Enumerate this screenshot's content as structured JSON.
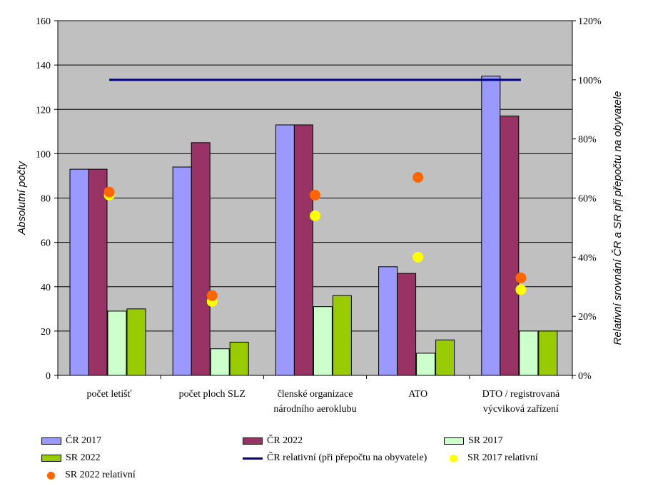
{
  "chart_data": {
    "type": "bar",
    "categories": [
      [
        "počet letišť"
      ],
      [
        "počet ploch SLZ"
      ],
      [
        "členské organizace",
        "národního aeroklubu"
      ],
      [
        "ATO"
      ],
      [
        "DTO / registrovaná",
        "výcviková zařízení"
      ]
    ],
    "series": [
      {
        "name": "ČR 2017",
        "values": [
          93,
          94,
          113,
          49,
          135
        ],
        "color": "#9999ff"
      },
      {
        "name": "ČR 2022",
        "values": [
          93,
          105,
          113,
          46,
          117
        ],
        "color": "#993366"
      },
      {
        "name": "SR 2017",
        "values": [
          29,
          12,
          31,
          10,
          20
        ],
        "color": "#ccffcc"
      },
      {
        "name": "SR 2022",
        "values": [
          30,
          15,
          36,
          16,
          20
        ],
        "color": "#99cc00"
      }
    ],
    "relative_line": {
      "name": "ČR relativní (při přepočtu na obyvatele)",
      "value": 100,
      "color": "#000080"
    },
    "relative_points": [
      {
        "name": "SR 2017 relativní",
        "values": [
          61,
          25,
          54,
          40,
          29
        ],
        "color": "#ffff00"
      },
      {
        "name": "SR 2022 relativní",
        "values": [
          62,
          27,
          61,
          67,
          33
        ],
        "color": "#ff6600"
      }
    ],
    "ylabel": "Absolutní počty",
    "y2label": "Relativní srovnání ČR a SR při přepočtu na obyvatele",
    "ylim": [
      0,
      160
    ],
    "yticks": [
      "0",
      "20",
      "40",
      "60",
      "80",
      "100",
      "120",
      "140",
      "160"
    ],
    "y2lim": [
      0,
      120
    ],
    "y2ticks": [
      "0%",
      "20%",
      "40%",
      "60%",
      "80%",
      "100%",
      "120%"
    ],
    "plot_bg": "#c0c0c0",
    "legend_placement": "bottom"
  },
  "legend": [
    {
      "label": "ČR 2017",
      "kind": "bar",
      "color": "#9999ff"
    },
    {
      "label": "ČR 2022",
      "kind": "bar",
      "color": "#993366"
    },
    {
      "label": "SR 2017",
      "kind": "bar",
      "color": "#ccffcc"
    },
    {
      "label": "SR 2022",
      "kind": "bar",
      "color": "#99cc00"
    },
    {
      "label": "ČR relativní (při přepočtu na obyvatele)",
      "kind": "line",
      "color": "#000080"
    },
    {
      "label": "SR 2017 relativní",
      "kind": "dot",
      "color": "#ffff00"
    },
    {
      "label": "SR 2022 relativní",
      "kind": "dot",
      "color": "#ff6600"
    }
  ]
}
